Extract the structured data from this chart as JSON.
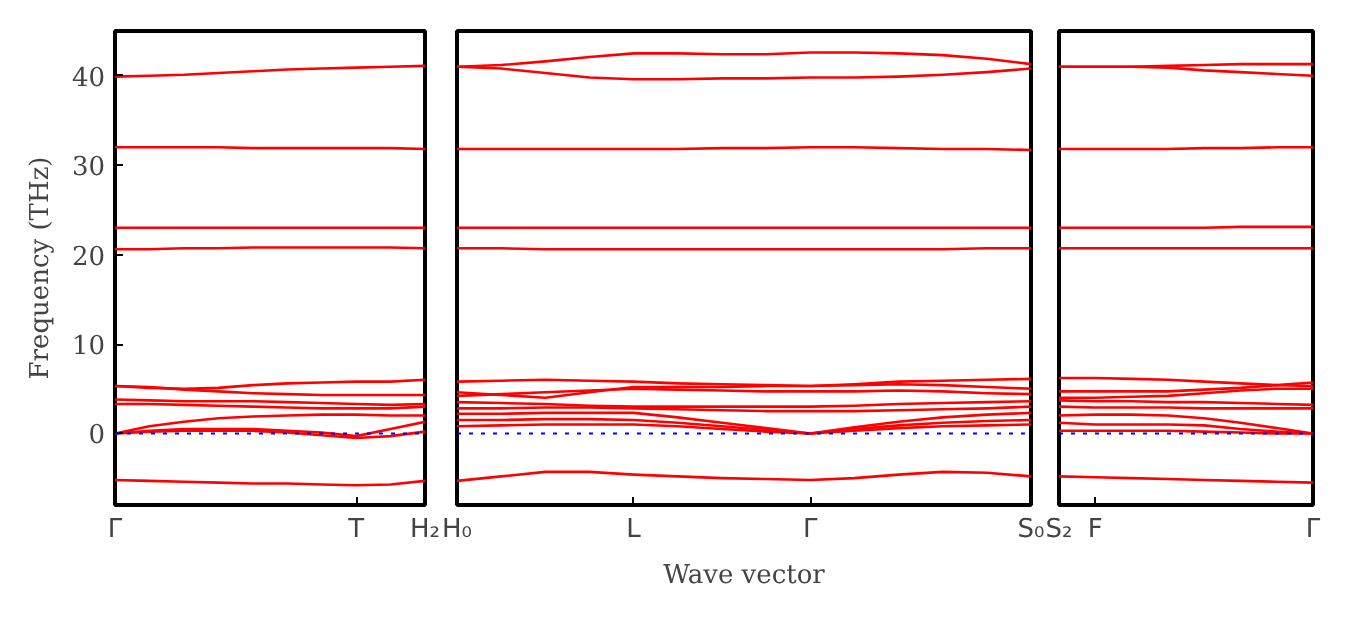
{
  "chart_data": [
    {
      "type": "line",
      "ylabel": "Frequency (THz)",
      "categories": [
        "Γ",
        null,
        null,
        null,
        null,
        null,
        null,
        "T",
        null,
        "H₂"
      ],
      "ylim": [
        -8,
        45
      ],
      "yticks": [
        0,
        10,
        20,
        30,
        40
      ],
      "ref_lines": [
        {
          "axis": "y",
          "value": 0,
          "color": "#0000ff",
          "line_style": "dotted"
        }
      ],
      "series": [
        {
          "color": "#ff0000",
          "values": [
            -5.2,
            -5.3,
            -5.4,
            -5.5,
            -5.6,
            -5.6,
            -5.7,
            -5.8,
            -5.7,
            -5.3
          ]
        },
        {
          "color": "#ff0000",
          "values": [
            0,
            0.2,
            0.3,
            0.3,
            0.3,
            0.1,
            -0.2,
            -0.5,
            -0.3,
            0.2
          ]
        },
        {
          "color": "#ff0000",
          "values": [
            0,
            0.3,
            0.5,
            0.5,
            0.5,
            0.3,
            0.1,
            -0.3,
            0.5,
            1.3
          ]
        },
        {
          "color": "#ff0000",
          "values": [
            0,
            0.8,
            1.3,
            1.7,
            1.9,
            2.0,
            2.1,
            2.1,
            2.0,
            2.0
          ]
        },
        {
          "color": "#ff0000",
          "values": [
            3.3,
            3.3,
            3.2,
            3.1,
            3.0,
            2.9,
            2.8,
            2.8,
            2.8,
            3.0
          ]
        },
        {
          "color": "#ff0000",
          "values": [
            3.8,
            3.7,
            3.6,
            3.6,
            3.6,
            3.5,
            3.4,
            3.3,
            3.2,
            3.3
          ]
        },
        {
          "color": "#ff0000",
          "values": [
            5.3,
            5.2,
            4.9,
            4.7,
            4.5,
            4.4,
            4.3,
            4.3,
            4.3,
            4.3
          ]
        },
        {
          "color": "#ff0000",
          "values": [
            5.3,
            5.1,
            5.0,
            5.1,
            5.4,
            5.6,
            5.7,
            5.8,
            5.8,
            6.0
          ]
        },
        {
          "color": "#ff0000",
          "values": [
            20.6,
            20.6,
            20.7,
            20.7,
            20.8,
            20.8,
            20.8,
            20.8,
            20.8,
            20.7
          ]
        },
        {
          "color": "#ff0000",
          "values": [
            23.0,
            23.0,
            23.0,
            23.0,
            23.0,
            23.0,
            23.0,
            23.0,
            23.0,
            23.0
          ]
        },
        {
          "color": "#ff0000",
          "values": [
            32.0,
            32.0,
            32.0,
            32.0,
            31.9,
            31.9,
            31.9,
            31.9,
            31.9,
            31.8
          ]
        },
        {
          "color": "#ff0000",
          "values": [
            39.9,
            40.0,
            40.1,
            40.3,
            40.5,
            40.7,
            40.8,
            40.9,
            41.0,
            41.1
          ]
        }
      ]
    },
    {
      "type": "line",
      "xlabel": "Wave vector",
      "tick_labels": "x",
      "categories": [
        "H₀",
        null,
        null,
        null,
        "L",
        null,
        null,
        null,
        "Γ",
        null,
        null,
        null,
        null,
        "S₀"
      ],
      "ylim": [
        -8,
        45
      ],
      "yticks": [
        0,
        10,
        20,
        30,
        40
      ],
      "ref_lines": [
        {
          "axis": "y",
          "value": 0,
          "color": "#0000ff",
          "line_style": "dotted"
        }
      ],
      "series": [
        {
          "color": "#ff0000",
          "values": [
            -5.3,
            -4.8,
            -4.3,
            -4.3,
            -4.6,
            -4.8,
            -5.0,
            -5.1,
            -5.2,
            -5.0,
            -4.6,
            -4.3,
            -4.4,
            -4.8
          ]
        },
        {
          "color": "#ff0000",
          "values": [
            0.8,
            0.9,
            1.0,
            1.0,
            1.0,
            0.8,
            0.5,
            0.2,
            0,
            0.3,
            0.6,
            0.8,
            0.9,
            1.0
          ]
        },
        {
          "color": "#ff0000",
          "values": [
            1.5,
            1.5,
            1.6,
            1.6,
            1.5,
            1.2,
            0.8,
            0.4,
            0,
            0.5,
            0.9,
            1.2,
            1.4,
            1.5
          ]
        },
        {
          "color": "#ff0000",
          "values": [
            2.2,
            2.2,
            2.3,
            2.3,
            2.3,
            1.8,
            1.2,
            0.6,
            0,
            0.7,
            1.3,
            1.8,
            2.1,
            2.3
          ]
        },
        {
          "color": "#ff0000",
          "values": [
            2.8,
            2.8,
            2.9,
            2.9,
            2.8,
            2.7,
            2.6,
            2.5,
            2.5,
            2.5,
            2.6,
            2.7,
            2.8,
            3.0
          ]
        },
        {
          "color": "#ff0000",
          "values": [
            3.5,
            3.4,
            3.3,
            3.1,
            3.0,
            3.0,
            3.0,
            3.0,
            3.0,
            3.1,
            3.3,
            3.4,
            3.5,
            3.6
          ]
        },
        {
          "color": "#ff0000",
          "values": [
            4.2,
            4.4,
            4.6,
            4.8,
            5.0,
            4.9,
            4.8,
            4.7,
            4.7,
            4.7,
            4.8,
            4.7,
            4.5,
            4.4
          ]
        },
        {
          "color": "#ff0000",
          "values": [
            4.6,
            4.3,
            4.0,
            4.6,
            5.2,
            5.2,
            5.2,
            5.3,
            5.3,
            5.4,
            5.5,
            5.4,
            5.2,
            5.0
          ]
        },
        {
          "color": "#ff0000",
          "values": [
            5.8,
            5.9,
            6.0,
            5.9,
            5.8,
            5.6,
            5.5,
            5.4,
            5.3,
            5.5,
            5.8,
            5.9,
            6.0,
            6.1
          ]
        },
        {
          "color": "#ff0000",
          "values": [
            20.7,
            20.7,
            20.6,
            20.6,
            20.6,
            20.6,
            20.6,
            20.6,
            20.6,
            20.6,
            20.6,
            20.6,
            20.7,
            20.7
          ]
        },
        {
          "color": "#ff0000",
          "values": [
            23.0,
            23.0,
            23.0,
            23.0,
            23.0,
            23.0,
            23.0,
            23.0,
            23.0,
            23.0,
            23.0,
            23.0,
            23.0,
            23.0
          ]
        },
        {
          "color": "#ff0000",
          "values": [
            31.8,
            31.8,
            31.8,
            31.8,
            31.8,
            31.8,
            31.9,
            31.9,
            32.0,
            32.0,
            31.9,
            31.8,
            31.8,
            31.7
          ]
        },
        {
          "color": "#ff0000",
          "values": [
            41.0,
            40.8,
            40.3,
            39.8,
            39.6,
            39.6,
            39.7,
            39.7,
            39.8,
            39.8,
            39.9,
            40.1,
            40.4,
            40.8
          ]
        },
        {
          "color": "#ff0000",
          "values": [
            41.0,
            41.2,
            41.6,
            42.1,
            42.5,
            42.5,
            42.4,
            42.4,
            42.6,
            42.6,
            42.5,
            42.3,
            41.9,
            41.3
          ]
        }
      ]
    },
    {
      "type": "line",
      "tick_labels": "x",
      "categories": [
        "S₂",
        "F",
        null,
        null,
        null,
        null,
        null,
        "Γ"
      ],
      "ylim": [
        -8,
        45
      ],
      "yticks": [
        0,
        10,
        20,
        30,
        40
      ],
      "ref_lines": [
        {
          "axis": "y",
          "value": 0,
          "color": "#0000ff",
          "line_style": "dotted"
        }
      ],
      "series": [
        {
          "color": "#ff0000",
          "values": [
            -4.8,
            -4.9,
            -5.0,
            -5.1,
            -5.2,
            -5.3,
            -5.4,
            -5.5
          ]
        },
        {
          "color": "#ff0000",
          "values": [
            0.3,
            0.3,
            0.3,
            0.3,
            0.2,
            0.1,
            0,
            0
          ]
        },
        {
          "color": "#ff0000",
          "values": [
            1.2,
            1.0,
            1.0,
            1.0,
            0.9,
            0.5,
            0.2,
            0
          ]
        },
        {
          "color": "#ff0000",
          "values": [
            2.0,
            2.1,
            2.1,
            2.0,
            1.7,
            1.2,
            0.6,
            0
          ]
        },
        {
          "color": "#ff0000",
          "values": [
            3.0,
            2.9,
            2.9,
            2.9,
            2.8,
            2.8,
            2.8,
            2.8
          ]
        },
        {
          "color": "#ff0000",
          "values": [
            3.7,
            3.6,
            3.6,
            3.5,
            3.5,
            3.4,
            3.3,
            3.2
          ]
        },
        {
          "color": "#ff0000",
          "values": [
            4.0,
            4.0,
            4.1,
            4.2,
            4.5,
            4.8,
            5.0,
            5.0
          ]
        },
        {
          "color": "#ff0000",
          "values": [
            4.7,
            4.7,
            4.7,
            4.7,
            4.9,
            5.1,
            5.4,
            5.7
          ]
        },
        {
          "color": "#ff0000",
          "values": [
            6.2,
            6.2,
            6.1,
            6.0,
            5.8,
            5.6,
            5.4,
            5.3
          ]
        },
        {
          "color": "#ff0000",
          "values": [
            20.7,
            20.7,
            20.7,
            20.7,
            20.7,
            20.7,
            20.7,
            20.7
          ]
        },
        {
          "color": "#ff0000",
          "values": [
            23.0,
            23.0,
            23.0,
            23.0,
            23.0,
            23.1,
            23.1,
            23.1
          ]
        },
        {
          "color": "#ff0000",
          "values": [
            31.8,
            31.8,
            31.8,
            31.8,
            31.9,
            31.9,
            32.0,
            32.0
          ]
        },
        {
          "color": "#ff0000",
          "values": [
            41.0,
            41.0,
            41.0,
            40.9,
            40.6,
            40.4,
            40.2,
            40.0
          ]
        },
        {
          "color": "#ff0000",
          "values": [
            41.0,
            41.0,
            41.0,
            41.1,
            41.2,
            41.3,
            41.3,
            41.3
          ]
        }
      ]
    }
  ]
}
